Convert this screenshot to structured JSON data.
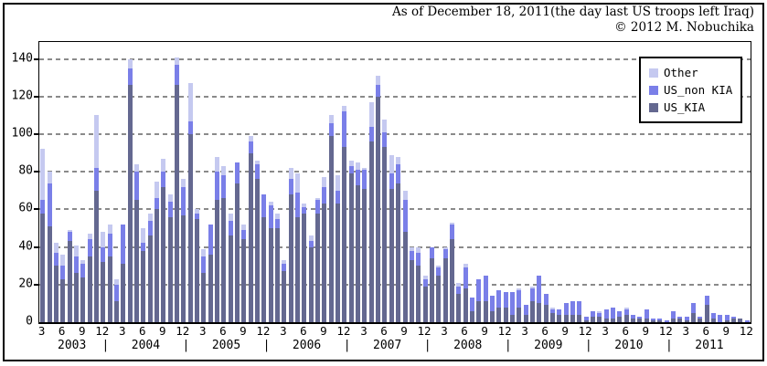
{
  "title": {
    "line1": "As of December 18, 2011(the day last US troops left Iraq)",
    "line2": "© 2012 M. Nobuchika"
  },
  "legend": {
    "items": [
      {
        "label": "Other",
        "color": "#c5c9f0"
      },
      {
        "label": "US_non KIA",
        "color": "#7a7fe8"
      },
      {
        "label": "US_KIA",
        "color": "#646890"
      }
    ]
  },
  "chart_data": {
    "type": "bar",
    "stacked": true,
    "title": "",
    "xlabel": "",
    "ylabel": "",
    "start": {
      "year": 2003,
      "month": 3
    },
    "end": {
      "year": 2011,
      "month": 12
    },
    "y_axis": {
      "ticks": [
        0,
        20,
        40,
        60,
        80,
        100,
        120,
        140
      ],
      "max": 149,
      "grid": true
    },
    "x_axis": {
      "tick_months": [
        3,
        6,
        9,
        12
      ],
      "years": [
        2003,
        2004,
        2005,
        2006,
        2007,
        2008,
        2009,
        2010,
        2011
      ],
      "year_separator": "|"
    },
    "legend_position": "top-right",
    "series": [
      {
        "name": "US_KIA",
        "color": "#646890",
        "values": [
          58,
          51,
          30,
          23,
          43,
          26,
          24,
          35,
          70,
          32,
          35,
          11,
          31,
          126,
          65,
          38,
          46,
          60,
          72,
          56,
          126,
          57,
          100,
          55,
          26,
          36,
          65,
          66,
          46,
          74,
          44,
          90,
          76,
          56,
          50,
          50,
          27,
          68,
          56,
          58,
          40,
          58,
          63,
          99,
          63,
          93,
          79,
          73,
          71,
          96,
          120,
          93,
          71,
          74,
          48,
          33,
          30,
          19,
          34,
          25,
          34,
          44,
          15,
          18,
          6,
          11,
          11,
          6,
          8,
          8,
          4,
          8,
          4,
          11,
          10,
          9,
          5,
          4,
          4,
          4,
          4,
          1,
          3,
          3,
          2,
          2,
          3,
          4,
          2,
          2,
          2,
          1,
          1,
          0,
          2,
          2,
          1,
          5,
          2,
          9,
          2,
          0,
          1,
          2,
          2,
          0
        ]
      },
      {
        "name": "US_non KIA",
        "color": "#7a7fe8",
        "values": [
          7,
          23,
          7,
          7,
          5,
          9,
          7,
          9,
          12,
          8,
          12,
          9,
          21,
          9,
          15,
          4,
          8,
          6,
          8,
          8,
          11,
          15,
          7,
          3,
          9,
          16,
          15,
          12,
          8,
          11,
          5,
          6,
          8,
          12,
          12,
          5,
          4,
          8,
          13,
          3,
          3,
          7,
          9,
          7,
          7,
          19,
          4,
          8,
          10,
          8,
          6,
          8,
          8,
          10,
          17,
          5,
          7,
          4,
          6,
          4,
          5,
          8,
          4,
          11,
          7,
          12,
          14,
          8,
          9,
          8,
          12,
          9,
          5,
          7,
          15,
          6,
          2,
          3,
          6,
          7,
          7,
          2,
          3,
          2,
          5,
          6,
          3,
          3,
          2,
          1,
          5,
          1,
          1,
          1,
          4,
          1,
          2,
          5,
          1,
          5,
          3,
          4,
          3,
          1,
          0,
          1
        ]
      },
      {
        "name": "Other",
        "color": "#c5c9f0",
        "values": [
          27,
          6,
          5,
          6,
          1,
          6,
          2,
          3,
          28,
          8,
          5,
          3,
          0,
          5,
          4,
          8,
          4,
          9,
          7,
          4,
          4,
          4,
          20,
          2,
          4,
          0,
          8,
          5,
          4,
          0,
          3,
          3,
          2,
          0,
          2,
          3,
          2,
          6,
          10,
          2,
          3,
          1,
          5,
          4,
          8,
          3,
          3,
          4,
          1,
          13,
          5,
          7,
          10,
          4,
          5,
          2,
          3,
          2,
          0,
          1,
          1,
          1,
          2,
          2,
          0,
          0,
          0,
          0,
          0,
          0,
          0,
          1,
          0,
          1,
          0,
          0,
          1,
          0,
          0,
          0,
          0,
          0,
          0,
          1,
          0,
          0,
          0,
          1,
          0,
          0,
          0,
          0,
          0,
          0,
          0,
          0,
          0,
          0,
          0,
          0,
          0,
          0,
          0,
          0,
          0,
          0
        ]
      }
    ]
  }
}
